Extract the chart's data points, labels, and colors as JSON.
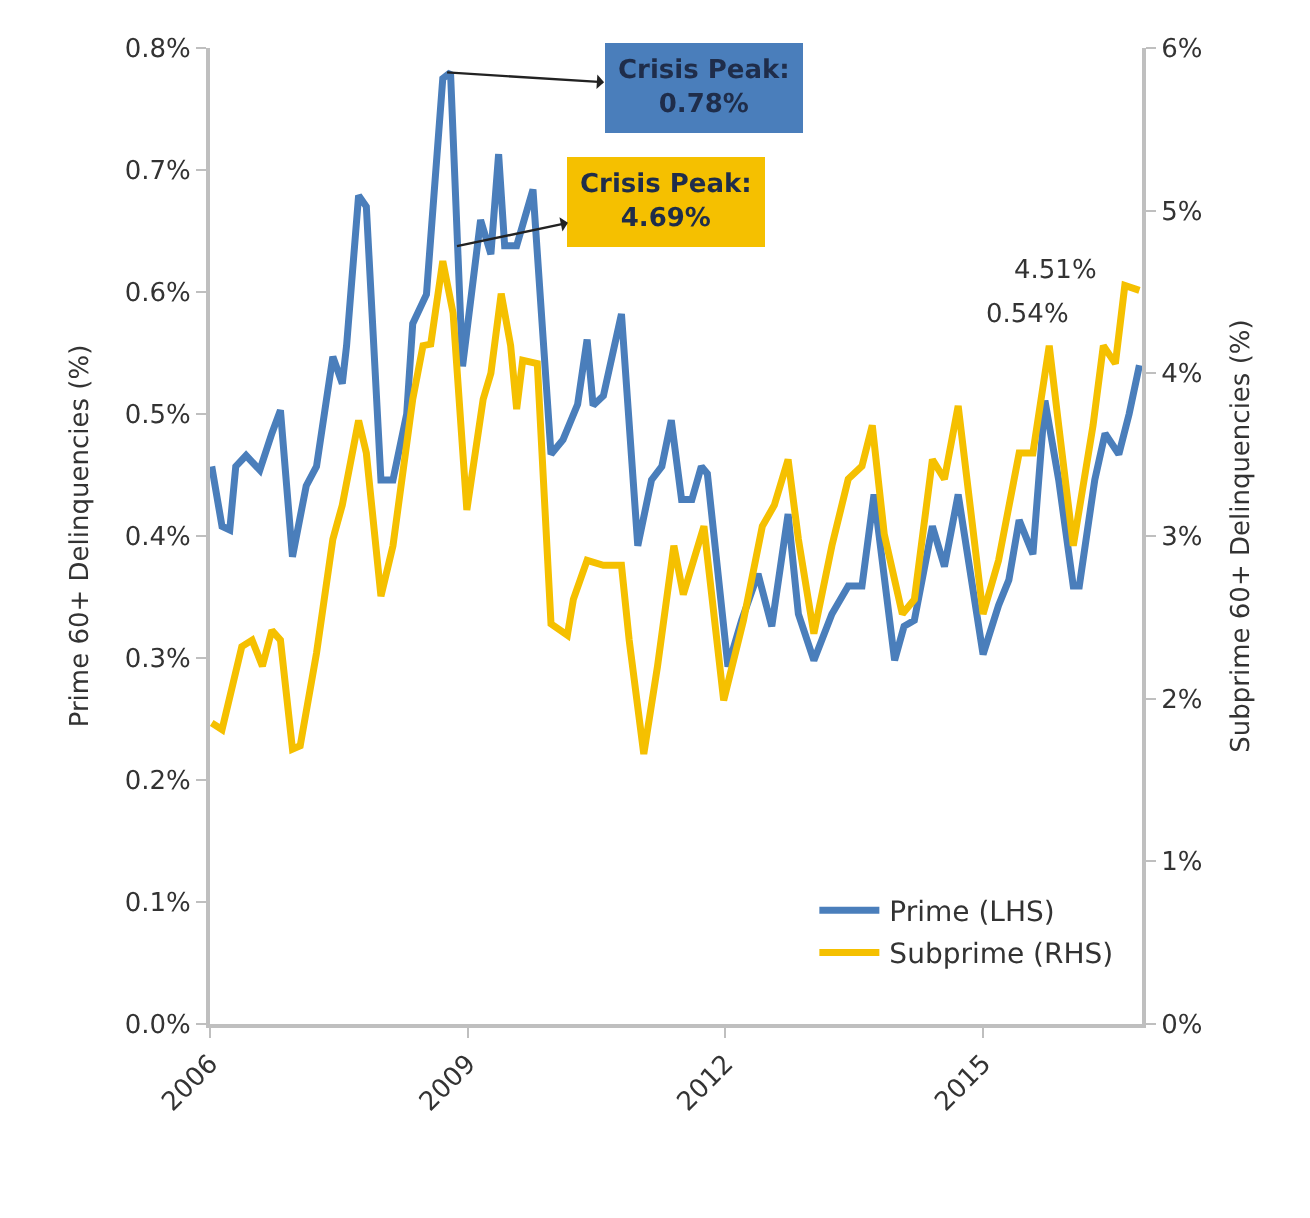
{
  "chart_data": {
    "type": "line",
    "ylabel": "Prime 60+ Delinquencies (%)",
    "y2label": "Subprime 60+ Delinquencies (%)",
    "xlim": [
      2006,
      2016.85
    ],
    "xticks": [
      2006,
      2009,
      2012,
      2015
    ],
    "ylim": [
      0,
      0.8
    ],
    "yticks": [
      {
        "value": 0,
        "label": "0.0%"
      },
      {
        "value": 0.1,
        "label": "0.1%"
      },
      {
        "value": 0.2,
        "label": "0.2%"
      },
      {
        "value": 0.3,
        "label": "0.3%"
      },
      {
        "value": 0.4,
        "label": "0.4%"
      },
      {
        "value": 0.5,
        "label": "0.5%"
      },
      {
        "value": 0.6,
        "label": "0.6%"
      },
      {
        "value": 0.7,
        "label": "0.7%"
      },
      {
        "value": 0.8,
        "label": "0.8%"
      }
    ],
    "y2lim": [
      0,
      6
    ],
    "y2ticks": [
      {
        "value": 0,
        "label": "0%"
      },
      {
        "value": 1,
        "label": "1%"
      },
      {
        "value": 2,
        "label": "2%"
      },
      {
        "value": 3,
        "label": "3%"
      },
      {
        "value": 4,
        "label": "4%"
      },
      {
        "value": 5,
        "label": "5%"
      },
      {
        "value": 6,
        "label": "6%"
      }
    ],
    "legend": "bottom right",
    "marker": "none",
    "line_style": "solid",
    "annotations": [
      {
        "text": "Crisis Peak:\n0.78%",
        "x": 2008.76,
        "y": 0.78
      },
      "Crisis Peak:\n4.69%",
      "4.51%",
      "0.54%"
    ],
    "series": [
      {
        "name": "Prime (LHS)",
        "color": "#4a7ebb",
        "x": [
          2006.02,
          2006.14,
          2006.23,
          2006.3,
          2006.42,
          2006.58,
          2006.72,
          2006.82,
          2006.96,
          2007.12,
          2007.24,
          2007.43,
          2007.54,
          2007.59,
          2007.73,
          2007.82,
          2007.99,
          2008.13,
          2008.29,
          2008.36,
          2008.52,
          2008.71,
          2008.8,
          2008.94,
          2009.15,
          2009.27,
          2009.36,
          2009.43,
          2009.57,
          2009.76,
          2009.97,
          2010.11,
          2010.28,
          2010.39,
          2010.46,
          2010.58,
          2010.79,
          2010.98,
          2011.14,
          2011.26,
          2011.37,
          2011.49,
          2011.61,
          2011.72,
          2011.79,
          2012.03,
          2012.19,
          2012.38,
          2012.54,
          2012.73,
          2012.85,
          2013.03,
          2013.24,
          2013.43,
          2013.59,
          2013.73,
          2013.97,
          2014.08,
          2014.2,
          2014.41,
          2014.55,
          2014.71,
          2015.0,
          2015.18,
          2015.3,
          2015.42,
          2015.58,
          2015.72,
          2015.88,
          2016.05,
          2016.12,
          2016.3,
          2016.42,
          2016.58,
          2016.7,
          2016.82
        ],
        "values": [
          0.457,
          0.408,
          0.405,
          0.457,
          0.466,
          0.454,
          0.484,
          0.503,
          0.383,
          0.441,
          0.457,
          0.547,
          0.525,
          0.556,
          0.679,
          0.67,
          0.446,
          0.446,
          0.5,
          0.574,
          0.598,
          0.775,
          0.78,
          0.539,
          0.659,
          0.631,
          0.713,
          0.638,
          0.638,
          0.684,
          0.467,
          0.479,
          0.508,
          0.561,
          0.507,
          0.515,
          0.582,
          0.392,
          0.446,
          0.457,
          0.495,
          0.43,
          0.43,
          0.457,
          0.451,
          0.293,
          0.331,
          0.369,
          0.326,
          0.418,
          0.336,
          0.298,
          0.336,
          0.359,
          0.359,
          0.434,
          0.298,
          0.326,
          0.331,
          0.408,
          0.375,
          0.434,
          0.303,
          0.343,
          0.364,
          0.413,
          0.385,
          0.511,
          0.446,
          0.359,
          0.359,
          0.446,
          0.484,
          0.467,
          0.5,
          0.54
        ]
      },
      {
        "name": "Subprime (RHS)",
        "color": "#f5c000",
        "axis": "y2",
        "x": [
          2006.02,
          2006.14,
          2006.37,
          2006.49,
          2006.61,
          2006.72,
          2006.82,
          2006.96,
          2007.05,
          2007.24,
          2007.43,
          2007.54,
          2007.73,
          2007.82,
          2007.99,
          2008.13,
          2008.36,
          2008.48,
          2008.57,
          2008.71,
          2008.83,
          2008.99,
          2009.18,
          2009.27,
          2009.39,
          2009.5,
          2009.57,
          2009.64,
          2009.81,
          2009.97,
          2010.16,
          2010.23,
          2010.39,
          2010.58,
          2010.79,
          2010.88,
          2011.05,
          2011.21,
          2011.4,
          2011.51,
          2011.75,
          2011.98,
          2012.21,
          2012.43,
          2012.57,
          2012.73,
          2012.85,
          2013.03,
          2013.24,
          2013.43,
          2013.59,
          2013.71,
          2013.85,
          2014.06,
          2014.2,
          2014.41,
          2014.55,
          2014.71,
          2015.0,
          2015.18,
          2015.42,
          2015.58,
          2015.77,
          2015.88,
          2016.05,
          2016.28,
          2016.4,
          2016.54,
          2016.65,
          2016.82
        ],
        "values": [
          1.85,
          1.81,
          2.32,
          2.36,
          2.2,
          2.42,
          2.36,
          1.69,
          1.71,
          2.28,
          2.98,
          3.19,
          3.71,
          3.51,
          2.63,
          2.94,
          3.84,
          4.17,
          4.18,
          4.69,
          4.37,
          3.16,
          3.84,
          4.0,
          4.49,
          4.17,
          3.78,
          4.08,
          4.06,
          2.46,
          2.39,
          2.61,
          2.85,
          2.82,
          2.82,
          2.36,
          1.66,
          2.2,
          2.94,
          2.64,
          3.06,
          1.99,
          2.48,
          3.06,
          3.19,
          3.47,
          2.98,
          2.4,
          2.94,
          3.35,
          3.43,
          3.68,
          3.01,
          2.52,
          2.61,
          3.47,
          3.35,
          3.8,
          2.52,
          2.85,
          3.51,
          3.51,
          4.17,
          3.68,
          2.94,
          3.68,
          4.17,
          4.06,
          4.54,
          4.51
        ]
      }
    ]
  }
}
